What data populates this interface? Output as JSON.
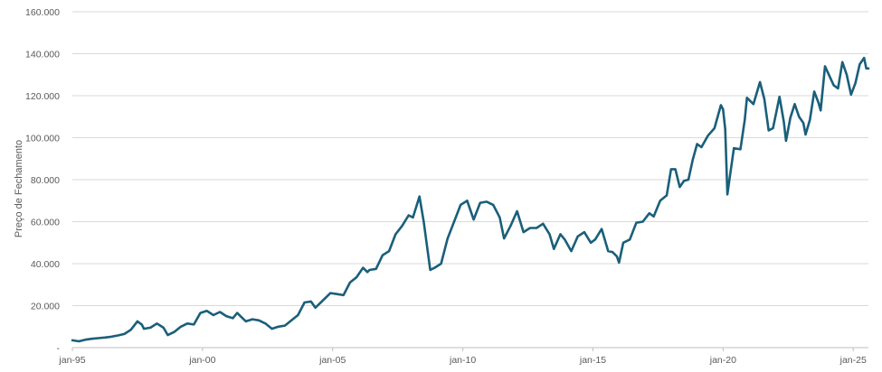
{
  "chart_data": {
    "type": "line",
    "title": "",
    "xlabel": "",
    "ylabel": "Preço de Fechamento",
    "y_ticks": [
      {
        "value": 0,
        "label": "-"
      },
      {
        "value": 20000,
        "label": "20.000"
      },
      {
        "value": 40000,
        "label": "40.000"
      },
      {
        "value": 60000,
        "label": "60.000"
      },
      {
        "value": 80000,
        "label": "80.000"
      },
      {
        "value": 100000,
        "label": "100.000"
      },
      {
        "value": 120000,
        "label": "120.000"
      },
      {
        "value": 140000,
        "label": "140.000"
      },
      {
        "value": 160000,
        "label": "160.000"
      }
    ],
    "x_ticks": [
      {
        "value": "1995-01",
        "label": "jan-95"
      },
      {
        "value": "2000-01",
        "label": "jan-00"
      },
      {
        "value": "2005-01",
        "label": "jan-05"
      },
      {
        "value": "2010-01",
        "label": "jan-10"
      },
      {
        "value": "2015-01",
        "label": "jan-15"
      },
      {
        "value": "2020-01",
        "label": "jan-20"
      },
      {
        "value": "2025-01",
        "label": "jan-25"
      }
    ],
    "xlim": [
      "1995-01",
      "2025-08"
    ],
    "ylim": [
      0,
      160000
    ],
    "grid": "horizontal",
    "line_color": "#1a5f7a",
    "series": [
      {
        "values": [
          [
            "1995-01",
            3500
          ],
          [
            "1995-04",
            3000
          ],
          [
            "1995-07",
            3800
          ],
          [
            "1995-10",
            4200
          ],
          [
            "1996-01",
            4500
          ],
          [
            "1996-04",
            4800
          ],
          [
            "1996-07",
            5200
          ],
          [
            "1996-10",
            5800
          ],
          [
            "1997-01",
            6500
          ],
          [
            "1997-04",
            8500
          ],
          [
            "1997-07",
            12500
          ],
          [
            "1997-09",
            11000
          ],
          [
            "1997-10",
            9000
          ],
          [
            "1998-01",
            9500
          ],
          [
            "1998-04",
            11500
          ],
          [
            "1998-07",
            9500
          ],
          [
            "1998-09",
            6000
          ],
          [
            "1998-12",
            7500
          ],
          [
            "1999-03",
            10000
          ],
          [
            "1999-06",
            11500
          ],
          [
            "1999-09",
            11000
          ],
          [
            "1999-12",
            16500
          ],
          [
            "2000-03",
            17500
          ],
          [
            "2000-06",
            15500
          ],
          [
            "2000-09",
            17000
          ],
          [
            "2000-12",
            15000
          ],
          [
            "2001-03",
            14000
          ],
          [
            "2001-05",
            16500
          ],
          [
            "2001-07",
            14500
          ],
          [
            "2001-09",
            12500
          ],
          [
            "2001-12",
            13500
          ],
          [
            "2002-03",
            13000
          ],
          [
            "2002-06",
            11500
          ],
          [
            "2002-09",
            9000
          ],
          [
            "2002-12",
            10000
          ],
          [
            "2003-03",
            10500
          ],
          [
            "2003-06",
            13000
          ],
          [
            "2003-09",
            15500
          ],
          [
            "2003-12",
            21500
          ],
          [
            "2004-03",
            22000
          ],
          [
            "2004-05",
            19000
          ],
          [
            "2004-08",
            22000
          ],
          [
            "2004-12",
            26000
          ],
          [
            "2005-03",
            25500
          ],
          [
            "2005-06",
            25000
          ],
          [
            "2005-09",
            31000
          ],
          [
            "2005-12",
            33500
          ],
          [
            "2006-03",
            38000
          ],
          [
            "2006-05",
            36000
          ],
          [
            "2006-06",
            37000
          ],
          [
            "2006-09",
            37500
          ],
          [
            "2006-12",
            44000
          ],
          [
            "2007-03",
            46000
          ],
          [
            "2007-06",
            54000
          ],
          [
            "2007-09",
            58000
          ],
          [
            "2007-12",
            63000
          ],
          [
            "2008-02",
            62000
          ],
          [
            "2008-05",
            72000
          ],
          [
            "2008-07",
            60000
          ],
          [
            "2008-10",
            37000
          ],
          [
            "2008-12",
            38000
          ],
          [
            "2009-03",
            40000
          ],
          [
            "2009-06",
            52000
          ],
          [
            "2009-09",
            60000
          ],
          [
            "2009-12",
            68000
          ],
          [
            "2010-03",
            70000
          ],
          [
            "2010-06",
            61000
          ],
          [
            "2010-09",
            69000
          ],
          [
            "2010-12",
            69500
          ],
          [
            "2011-03",
            68000
          ],
          [
            "2011-06",
            62000
          ],
          [
            "2011-08",
            52000
          ],
          [
            "2011-11",
            58000
          ],
          [
            "2012-02",
            65000
          ],
          [
            "2012-05",
            55000
          ],
          [
            "2012-08",
            57000
          ],
          [
            "2012-11",
            57000
          ],
          [
            "2013-02",
            59000
          ],
          [
            "2013-05",
            54000
          ],
          [
            "2013-07",
            47000
          ],
          [
            "2013-10",
            54000
          ],
          [
            "2013-12",
            51500
          ],
          [
            "2014-03",
            46000
          ],
          [
            "2014-06",
            53000
          ],
          [
            "2014-09",
            55000
          ],
          [
            "2014-12",
            50000
          ],
          [
            "2015-02",
            51500
          ],
          [
            "2015-05",
            56500
          ],
          [
            "2015-08",
            46000
          ],
          [
            "2015-10",
            45500
          ],
          [
            "2015-12",
            43500
          ],
          [
            "2016-01",
            40500
          ],
          [
            "2016-03",
            50000
          ],
          [
            "2016-06",
            51500
          ],
          [
            "2016-09",
            59500
          ],
          [
            "2016-12",
            60000
          ],
          [
            "2017-03",
            64000
          ],
          [
            "2017-05",
            62500
          ],
          [
            "2017-08",
            70000
          ],
          [
            "2017-11",
            72500
          ],
          [
            "2018-01",
            85000
          ],
          [
            "2018-03",
            85000
          ],
          [
            "2018-05",
            76500
          ],
          [
            "2018-07",
            79500
          ],
          [
            "2018-09",
            80000
          ],
          [
            "2018-11",
            89500
          ],
          [
            "2019-01",
            97000
          ],
          [
            "2019-03",
            95500
          ],
          [
            "2019-06",
            101000
          ],
          [
            "2019-09",
            104500
          ],
          [
            "2019-12",
            115500
          ],
          [
            "2020-01",
            113500
          ],
          [
            "2020-02",
            104000
          ],
          [
            "2020-03",
            73000
          ],
          [
            "2020-04",
            80500
          ],
          [
            "2020-06",
            95000
          ],
          [
            "2020-09",
            94500
          ],
          [
            "2020-11",
            108500
          ],
          [
            "2020-12",
            119000
          ],
          [
            "2021-03",
            116000
          ],
          [
            "2021-06",
            126500
          ],
          [
            "2021-08",
            118500
          ],
          [
            "2021-10",
            103500
          ],
          [
            "2021-12",
            104500
          ],
          [
            "2022-03",
            119500
          ],
          [
            "2022-05",
            107500
          ],
          [
            "2022-06",
            98500
          ],
          [
            "2022-08",
            109500
          ],
          [
            "2022-10",
            116000
          ],
          [
            "2022-12",
            110000
          ],
          [
            "2023-02",
            107000
          ],
          [
            "2023-03",
            101500
          ],
          [
            "2023-05",
            108500
          ],
          [
            "2023-07",
            122000
          ],
          [
            "2023-09",
            116500
          ],
          [
            "2023-10",
            113000
          ],
          [
            "2023-12",
            134000
          ],
          [
            "2024-02",
            129500
          ],
          [
            "2024-04",
            125000
          ],
          [
            "2024-06",
            123500
          ],
          [
            "2024-08",
            136000
          ],
          [
            "2024-10",
            130000
          ],
          [
            "2024-12",
            120500
          ],
          [
            "2025-02",
            126000
          ],
          [
            "2025-04",
            135000
          ],
          [
            "2025-06",
            138000
          ],
          [
            "2025-07",
            133000
          ],
          [
            "2025-08",
            133000
          ]
        ]
      }
    ]
  }
}
